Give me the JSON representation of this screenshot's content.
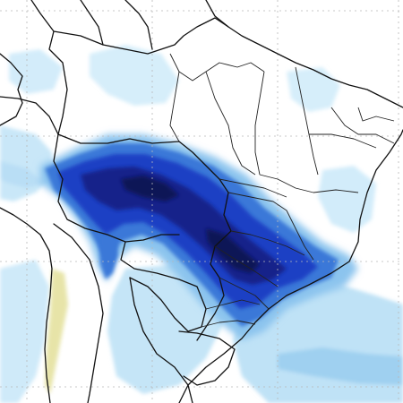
{
  "map": {
    "region": "South America",
    "field": "precipitation",
    "colors": {
      "very_light": "#dcf0fb",
      "light": "#a8d6f3",
      "medium_light": "#6fb6ea",
      "medium": "#3a78d8",
      "strong": "#1c3fc4",
      "very_strong": "#14238a",
      "extreme": "#0c1256",
      "land": "#ffffff",
      "dry_band": "#e3e09a",
      "borders": "#111111",
      "grid": "#b8b8b8"
    }
  }
}
